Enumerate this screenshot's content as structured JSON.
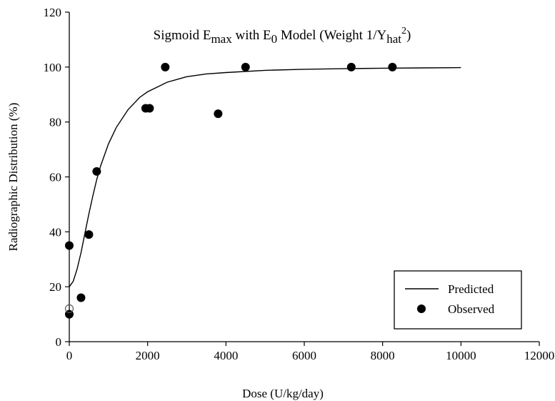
{
  "chart_data": {
    "type": "scatter",
    "title": {
      "parts": [
        {
          "text": "Sigmoid E",
          "sub": false
        },
        {
          "text": "max",
          "sub": true
        },
        {
          "text": " with E",
          "sub": false
        },
        {
          "text": "0",
          "sub": true
        },
        {
          "text": " Model (Weight 1/Y",
          "sub": false
        },
        {
          "text": "hat",
          "sub": true
        },
        {
          "text": "2",
          "sup": true
        },
        {
          "text": ")",
          "sub": false
        }
      ]
    },
    "xlabel": "Dose (U/kg/day)",
    "ylabel": "Radiographic Distribution (%)",
    "xlim": [
      0,
      12000
    ],
    "ylim": [
      0,
      120
    ],
    "xticks": [
      0,
      2000,
      4000,
      6000,
      8000,
      10000,
      12000
    ],
    "yticks": [
      0,
      20,
      40,
      60,
      80,
      100,
      120
    ],
    "legend_position": "bottom-right",
    "series": [
      {
        "name": "Predicted",
        "kind": "line",
        "x": [
          0,
          100,
          200,
          300,
          400,
          500,
          600,
          700,
          800,
          1000,
          1200,
          1500,
          1800,
          2000,
          2500,
          3000,
          3500,
          4000,
          5000,
          6000,
          7000,
          8000,
          9000,
          10000
        ],
        "y": [
          20.0,
          22.0,
          26.5,
          32.5,
          39.5,
          46.5,
          53.0,
          59.0,
          64.0,
          72.0,
          78.0,
          84.5,
          89.0,
          91.0,
          94.5,
          96.5,
          97.5,
          98.0,
          98.8,
          99.2,
          99.4,
          99.6,
          99.7,
          99.8
        ]
      },
      {
        "name": "Observed",
        "kind": "scatter",
        "points": [
          {
            "x": 0,
            "y": 35
          },
          {
            "x": 0,
            "y": 10
          },
          {
            "x": 300,
            "y": 16
          },
          {
            "x": 500,
            "y": 39
          },
          {
            "x": 700,
            "y": 62
          },
          {
            "x": 1950,
            "y": 85
          },
          {
            "x": 2050,
            "y": 85
          },
          {
            "x": 2450,
            "y": 100
          },
          {
            "x": 3800,
            "y": 83
          },
          {
            "x": 4500,
            "y": 100
          },
          {
            "x": 7200,
            "y": 100
          },
          {
            "x": 8250,
            "y": 100
          }
        ]
      },
      {
        "name": "",
        "kind": "hollow-marker",
        "points": [
          {
            "x": 0,
            "y": 12
          }
        ]
      }
    ]
  }
}
